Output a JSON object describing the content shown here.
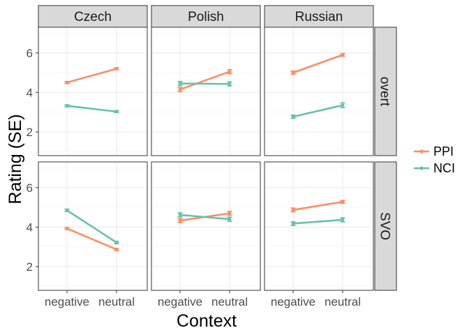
{
  "chart_data": {
    "type": "line",
    "facet_columns": [
      "Czech",
      "Polish",
      "Russian"
    ],
    "facet_rows": [
      "overt",
      "SVO"
    ],
    "categories": [
      "negative",
      "neutral"
    ],
    "xlabel": "Context",
    "ylabel": "Rating (SE)",
    "ylim": [
      0.8,
      7.3
    ],
    "yticks": [
      2,
      4,
      6
    ],
    "grid": true,
    "legend_position": "right",
    "series": [
      {
        "name": "PPI",
        "color": "#FC8D62"
      },
      {
        "name": "NCI",
        "color": "#66C2A5"
      }
    ],
    "panels": [
      {
        "column": "Czech",
        "row": "overt",
        "values": {
          "PPI": [
            4.5,
            5.2
          ],
          "NCI": [
            3.32,
            3.03
          ]
        },
        "se": {
          "PPI": [
            0.05,
            0.05
          ],
          "NCI": [
            0.05,
            0.05
          ]
        }
      },
      {
        "column": "Polish",
        "row": "overt",
        "values": {
          "PPI": [
            4.15,
            5.05
          ],
          "NCI": [
            4.45,
            4.43
          ]
        },
        "se": {
          "PPI": [
            0.1,
            0.1
          ],
          "NCI": [
            0.1,
            0.1
          ]
        }
      },
      {
        "column": "Russian",
        "row": "overt",
        "values": {
          "PPI": [
            5.0,
            5.9
          ],
          "NCI": [
            2.77,
            3.35
          ]
        },
        "se": {
          "PPI": [
            0.08,
            0.07
          ],
          "NCI": [
            0.08,
            0.12
          ]
        }
      },
      {
        "column": "Czech",
        "row": "SVO",
        "values": {
          "PPI": [
            3.93,
            2.87
          ],
          "NCI": [
            4.85,
            3.22
          ]
        },
        "se": {
          "PPI": [
            0.05,
            0.05
          ],
          "NCI": [
            0.06,
            0.06
          ]
        }
      },
      {
        "column": "Polish",
        "row": "SVO",
        "values": {
          "PPI": [
            4.33,
            4.7
          ],
          "NCI": [
            4.62,
            4.4
          ]
        },
        "se": {
          "PPI": [
            0.1,
            0.1
          ],
          "NCI": [
            0.1,
            0.1
          ]
        }
      },
      {
        "column": "Russian",
        "row": "SVO",
        "values": {
          "PPI": [
            4.87,
            5.28
          ],
          "NCI": [
            4.18,
            4.37
          ]
        },
        "se": {
          "PPI": [
            0.09,
            0.07
          ],
          "NCI": [
            0.09,
            0.1
          ]
        }
      }
    ]
  }
}
